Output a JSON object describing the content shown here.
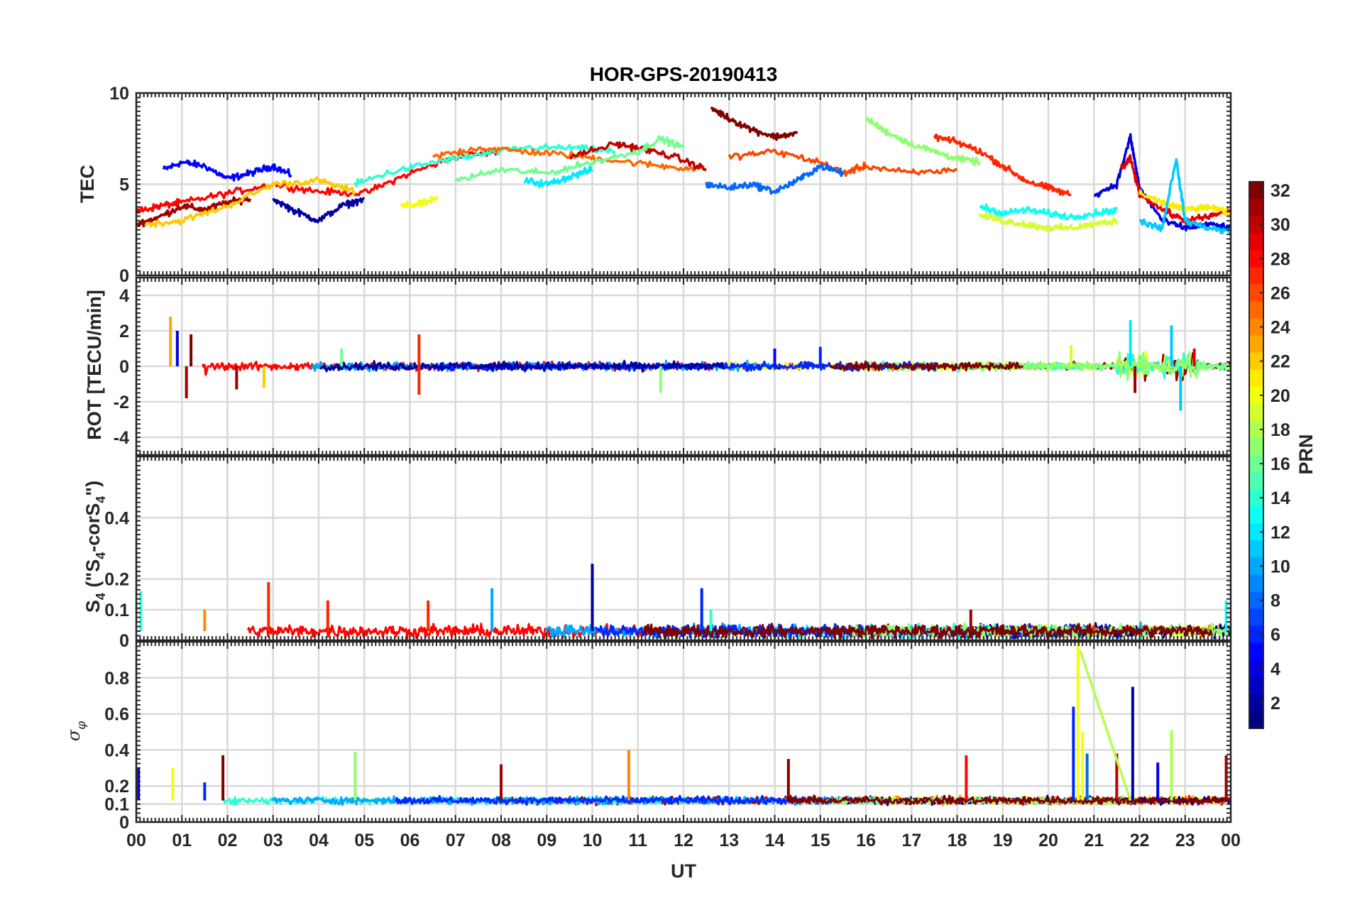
{
  "figure": {
    "title": "HOR-GPS-20190413",
    "xlabel": "UT",
    "x_tick_labels": [
      "00",
      "01",
      "02",
      "03",
      "04",
      "05",
      "06",
      "07",
      "08",
      "09",
      "10",
      "11",
      "12",
      "13",
      "14",
      "15",
      "16",
      "17",
      "18",
      "19",
      "20",
      "21",
      "22",
      "23",
      "00"
    ]
  },
  "colorbar": {
    "label": "PRN",
    "min": 1,
    "max": 32,
    "ticks": [
      2,
      4,
      6,
      8,
      10,
      12,
      14,
      16,
      18,
      20,
      22,
      24,
      26,
      28,
      30,
      32
    ],
    "colormap": "jet"
  },
  "chart_data": [
    {
      "type": "line",
      "panel": "TEC",
      "ylabel": "TEC",
      "ylim": [
        0,
        10
      ],
      "yticks": [
        0,
        5,
        10
      ],
      "xlim": [
        0,
        24
      ],
      "grid": true,
      "series": [
        {
          "prn": 5,
          "x": [
            0.6,
            1.0,
            1.5,
            2.0,
            2.5,
            3.0,
            3.4
          ],
          "y": [
            5.8,
            6.2,
            6.0,
            5.3,
            5.6,
            6.0,
            5.5
          ]
        },
        {
          "prn": 28,
          "x": [
            0.0,
            0.5,
            1.0,
            2.0,
            3.0,
            4.0,
            5.0,
            6.0,
            7.0,
            8.0
          ],
          "y": [
            3.5,
            3.8,
            4.0,
            4.5,
            5.0,
            4.6,
            4.5,
            5.6,
            6.5,
            6.8
          ]
        },
        {
          "prn": 31,
          "x": [
            0.0,
            0.5,
            1.0,
            1.5,
            2.0,
            2.5
          ],
          "y": [
            2.8,
            3.2,
            3.8,
            3.6,
            4.0,
            4.2
          ]
        },
        {
          "prn": 22,
          "x": [
            0.2,
            1.0,
            2.0,
            3.0,
            4.0,
            4.8
          ],
          "y": [
            2.8,
            3.0,
            3.8,
            5.0,
            5.2,
            4.6
          ]
        },
        {
          "prn": 2,
          "x": [
            3.0,
            3.5,
            4.0,
            4.5,
            5.0
          ],
          "y": [
            4.2,
            3.5,
            3.0,
            3.8,
            4.2
          ]
        },
        {
          "prn": 14,
          "x": [
            4.8,
            5.5,
            6.5,
            7.5,
            8.5,
            9.5,
            10.5
          ],
          "y": [
            5.0,
            5.6,
            6.2,
            6.6,
            7.0,
            7.0,
            6.8
          ]
        },
        {
          "prn": 20,
          "x": [
            5.8,
            6.2,
            6.6
          ],
          "y": [
            3.8,
            3.9,
            4.2
          ]
        },
        {
          "prn": 25,
          "x": [
            6.5,
            7.5,
            8.5,
            9.5,
            10.5,
            11.5,
            12.5
          ],
          "y": [
            6.5,
            7.0,
            6.8,
            6.6,
            6.3,
            6.0,
            5.8
          ]
        },
        {
          "prn": 30,
          "x": [
            9.5,
            10.5,
            11.0,
            11.8,
            12.5
          ],
          "y": [
            6.5,
            7.2,
            7.0,
            6.5,
            5.8
          ]
        },
        {
          "prn": 16,
          "x": [
            7.0,
            8.0,
            9.0,
            10.0,
            11.0,
            11.5,
            12.0
          ],
          "y": [
            5.2,
            5.8,
            5.6,
            6.2,
            6.8,
            7.5,
            7.0
          ]
        },
        {
          "prn": 12,
          "x": [
            8.5,
            9.0,
            9.5,
            10.0
          ],
          "y": [
            5.2,
            5.0,
            5.4,
            5.8
          ]
        },
        {
          "prn": 32,
          "x": [
            12.6,
            13.0,
            13.5,
            14.0,
            14.5
          ],
          "y": [
            9.2,
            8.6,
            8.0,
            7.6,
            7.8
          ]
        },
        {
          "prn": 26,
          "x": [
            13.0,
            14.0,
            15.0,
            15.5,
            16.0,
            17.0,
            18.0
          ],
          "y": [
            6.5,
            6.8,
            6.2,
            5.6,
            6.0,
            5.6,
            5.8
          ]
        },
        {
          "prn": 8,
          "x": [
            12.5,
            13.0,
            13.5,
            14.0,
            14.5,
            15.0,
            15.5
          ],
          "y": [
            5.0,
            4.8,
            5.0,
            4.6,
            5.2,
            6.0,
            5.6
          ]
        },
        {
          "prn": 17,
          "x": [
            16.0,
            16.5,
            17.0,
            17.5,
            18.0,
            18.5
          ],
          "y": [
            8.6,
            7.8,
            7.2,
            6.8,
            6.4,
            6.2
          ]
        },
        {
          "prn": 27,
          "x": [
            17.5,
            18.0,
            18.5,
            19.0,
            19.5,
            20.0,
            20.5
          ],
          "y": [
            7.6,
            7.3,
            6.8,
            6.0,
            5.2,
            4.8,
            4.4
          ]
        },
        {
          "prn": 13,
          "x": [
            18.5,
            19.0,
            19.5,
            20.0,
            20.5,
            21.0,
            21.5
          ],
          "y": [
            3.8,
            3.4,
            3.6,
            3.4,
            3.2,
            3.4,
            3.6
          ]
        },
        {
          "prn": 19,
          "x": [
            18.5,
            19.0,
            19.5,
            20.0,
            20.5,
            21.0,
            21.5
          ],
          "y": [
            3.3,
            3.0,
            2.8,
            2.6,
            2.6,
            2.8,
            3.0
          ]
        },
        {
          "prn": 4,
          "x": [
            21.0,
            21.5,
            21.8,
            22.0,
            22.5,
            23.0,
            23.5,
            24.0
          ],
          "y": [
            4.4,
            5.0,
            7.6,
            4.8,
            3.0,
            2.6,
            2.8,
            2.6
          ]
        },
        {
          "prn": 29,
          "x": [
            21.6,
            21.8,
            22.0,
            22.5,
            23.0,
            23.5,
            24.0
          ],
          "y": [
            5.8,
            6.4,
            4.5,
            3.6,
            3.0,
            3.2,
            3.6
          ]
        },
        {
          "prn": 21,
          "x": [
            22.0,
            22.5,
            23.0,
            23.5,
            24.0
          ],
          "y": [
            4.5,
            4.0,
            3.6,
            3.8,
            3.4
          ]
        },
        {
          "prn": 11,
          "x": [
            22.0,
            22.5,
            22.8,
            23.0,
            23.5,
            24.0
          ],
          "y": [
            3.0,
            2.6,
            6.4,
            3.0,
            2.6,
            2.4
          ]
        }
      ]
    },
    {
      "type": "line",
      "panel": "ROT",
      "ylabel": "ROT [TECU/min]",
      "ylim": [
        -5,
        5
      ],
      "yticks": [
        -4,
        -2,
        0,
        2,
        4
      ],
      "xlim": [
        0,
        24
      ],
      "grid": true,
      "note_values": "rate of TEC noise around zero; spikes up to about +/-2.5 TECU/min near 00-01, 06, 21.6-22 and 22.5-23 UT",
      "spikes": [
        {
          "x": 0.75,
          "y": 2.8,
          "prn": 23
        },
        {
          "x": 0.9,
          "y": 2.0,
          "prn": 4
        },
        {
          "x": 1.1,
          "y": -1.8,
          "prn": 31
        },
        {
          "x": 1.2,
          "y": 1.8,
          "prn": 32
        },
        {
          "x": 2.2,
          "y": -1.3,
          "prn": 31
        },
        {
          "x": 2.8,
          "y": -1.2,
          "prn": 22
        },
        {
          "x": 4.5,
          "y": 1.0,
          "prn": 16
        },
        {
          "x": 6.2,
          "y": 1.8,
          "prn": 27
        },
        {
          "x": 6.2,
          "y": -1.6,
          "prn": 27
        },
        {
          "x": 11.5,
          "y": -1.5,
          "prn": 17
        },
        {
          "x": 14.0,
          "y": 1.0,
          "prn": 5
        },
        {
          "x": 15.0,
          "y": 1.1,
          "prn": 6
        },
        {
          "x": 20.5,
          "y": 1.2,
          "prn": 19
        },
        {
          "x": 21.8,
          "y": 2.6,
          "prn": 12
        },
        {
          "x": 21.9,
          "y": -1.5,
          "prn": 31
        },
        {
          "x": 22.7,
          "y": 2.3,
          "prn": 11
        },
        {
          "x": 22.9,
          "y": -2.5,
          "prn": 11
        },
        {
          "x": 23.2,
          "y": 1.0,
          "prn": 29
        }
      ]
    },
    {
      "type": "line",
      "panel": "S4",
      "ylabel": "S4 (\"S4-corS4\")",
      "ylim": [
        0,
        0.6
      ],
      "yticks": [
        0,
        0.1,
        0.2,
        0.4
      ],
      "xlim": [
        0,
        24
      ],
      "grid": true,
      "baseline": 0.03,
      "spikes": [
        {
          "x": 0.1,
          "y": 0.16,
          "prn": 14
        },
        {
          "x": 1.5,
          "y": 0.1,
          "prn": 24
        },
        {
          "x": 2.9,
          "y": 0.19,
          "prn": 27
        },
        {
          "x": 4.2,
          "y": 0.13,
          "prn": 27
        },
        {
          "x": 6.4,
          "y": 0.13,
          "prn": 27
        },
        {
          "x": 7.8,
          "y": 0.17,
          "prn": 10
        },
        {
          "x": 10.0,
          "y": 0.25,
          "prn": 2
        },
        {
          "x": 12.4,
          "y": 0.17,
          "prn": 6
        },
        {
          "x": 12.6,
          "y": 0.1,
          "prn": 14
        },
        {
          "x": 18.3,
          "y": 0.1,
          "prn": 31
        },
        {
          "x": 21.0,
          "y": 0.05,
          "prn": 27
        },
        {
          "x": 23.9,
          "y": 0.13,
          "prn": 13
        }
      ]
    },
    {
      "type": "line",
      "panel": "sigma_phi",
      "ylabel": "σφ",
      "ylim": [
        0,
        1
      ],
      "yticks": [
        0,
        0.1,
        0.2,
        0.4,
        0.6,
        0.8
      ],
      "xlim": [
        0,
        24
      ],
      "grid": true,
      "baseline": 0.12,
      "spikes": [
        {
          "x": 0.05,
          "y": 0.3,
          "prn": 4
        },
        {
          "x": 0.8,
          "y": 0.3,
          "prn": 20
        },
        {
          "x": 1.5,
          "y": 0.22,
          "prn": 6
        },
        {
          "x": 1.9,
          "y": 0.37,
          "prn": 32
        },
        {
          "x": 4.8,
          "y": 0.39,
          "prn": 17
        },
        {
          "x": 8.0,
          "y": 0.32,
          "prn": 31
        },
        {
          "x": 10.8,
          "y": 0.4,
          "prn": 24
        },
        {
          "x": 14.3,
          "y": 0.35,
          "prn": 32
        },
        {
          "x": 18.2,
          "y": 0.37,
          "prn": 28
        },
        {
          "x": 20.55,
          "y": 0.64,
          "prn": 6
        },
        {
          "x": 20.65,
          "y": 1.0,
          "prn": 20
        },
        {
          "x": 20.75,
          "y": 0.5,
          "prn": 20
        },
        {
          "x": 20.85,
          "y": 0.38,
          "prn": 8
        },
        {
          "x": 21.5,
          "y": 0.38,
          "prn": 30
        },
        {
          "x": 21.85,
          "y": 0.75,
          "prn": 2
        },
        {
          "x": 22.4,
          "y": 0.33,
          "prn": 4
        },
        {
          "x": 22.7,
          "y": 0.51,
          "prn": 18
        },
        {
          "x": 23.9,
          "y": 0.37,
          "prn": 31
        }
      ],
      "segments": [
        {
          "prn": 18,
          "x": [
            20.7,
            21.8
          ],
          "y": [
            0.95,
            0.12
          ]
        }
      ]
    }
  ]
}
